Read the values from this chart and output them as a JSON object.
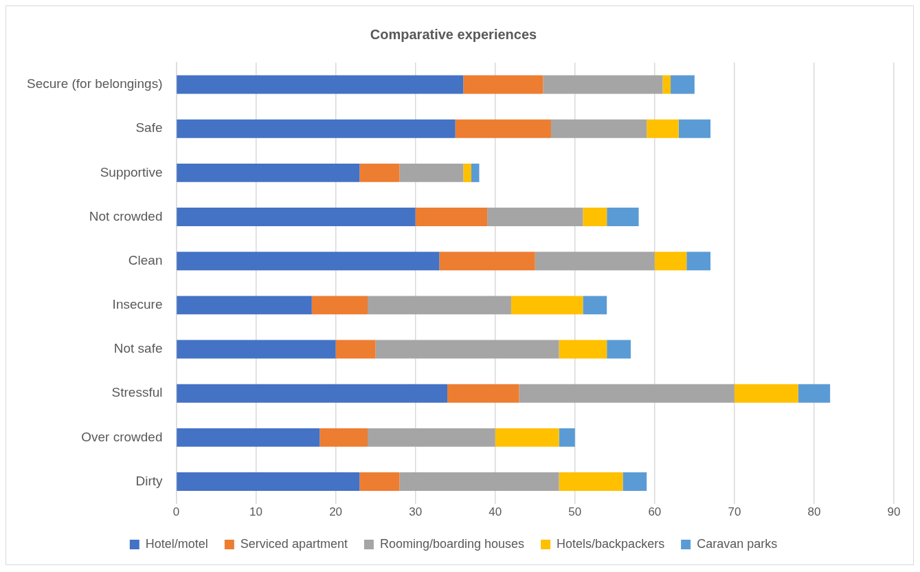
{
  "chart_data": {
    "type": "bar",
    "orientation": "horizontal",
    "stacked": true,
    "title": "Comparative experiences",
    "categories": [
      "Secure (for belongings)",
      "Safe",
      "Supportive",
      "Not crowded",
      "Clean",
      "Insecure",
      "Not safe",
      "Stressful",
      "Over crowded",
      "Dirty"
    ],
    "series": [
      {
        "name": "Hotel/motel",
        "color": "#4472c4",
        "values": [
          36,
          35,
          23,
          30,
          33,
          17,
          20,
          34,
          18,
          23
        ]
      },
      {
        "name": "Serviced apartment",
        "color": "#ed7d31",
        "values": [
          10,
          12,
          5,
          9,
          12,
          7,
          5,
          9,
          6,
          5
        ]
      },
      {
        "name": "Rooming/boarding houses",
        "color": "#a5a5a5",
        "values": [
          15,
          12,
          8,
          12,
          15,
          18,
          23,
          27,
          16,
          20
        ]
      },
      {
        "name": "Hotels/backpackers",
        "color": "#ffc000",
        "values": [
          1,
          4,
          1,
          3,
          4,
          9,
          6,
          8,
          8,
          8
        ]
      },
      {
        "name": "Caravan parks",
        "color": "#5b9bd5",
        "values": [
          3,
          4,
          1,
          4,
          3,
          3,
          3,
          4,
          2,
          3
        ]
      }
    ],
    "xlim": [
      0,
      90
    ],
    "xticks": [
      0,
      10,
      20,
      30,
      40,
      50,
      60,
      70,
      80,
      90
    ],
    "grid": "x",
    "legend": "bottom"
  }
}
